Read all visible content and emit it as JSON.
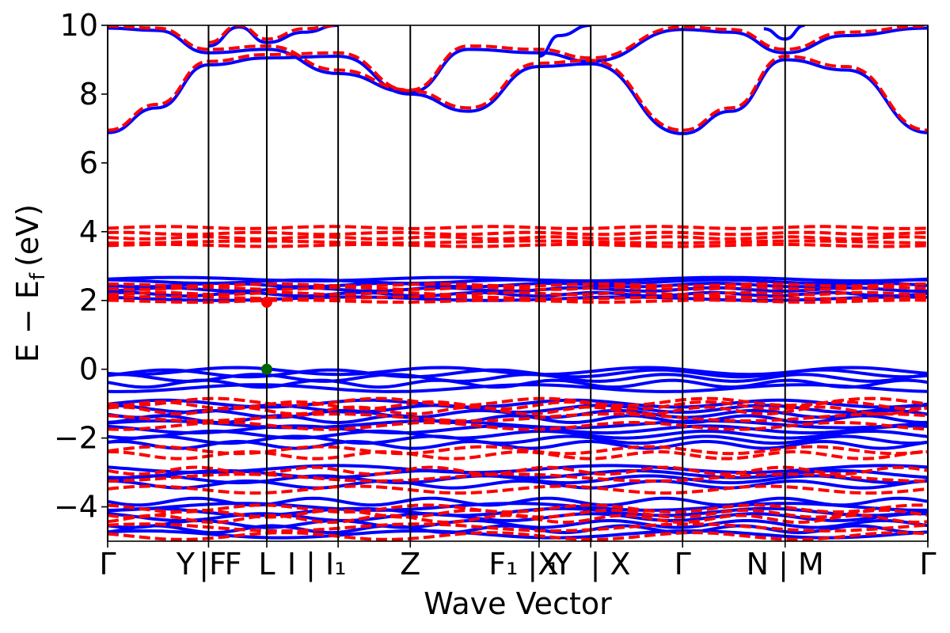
{
  "chart_data": {
    "type": "line",
    "xlabel": "Wave Vector",
    "ylabel": "E − E",
    "ylabel_sub": "f",
    "ylabel_unit": "(eV)",
    "ylim": [
      -5,
      10
    ],
    "yticks": [
      -4,
      -2,
      0,
      2,
      4,
      6,
      8,
      10
    ],
    "ytick_labels": [
      "−4",
      "−2",
      "0",
      "2",
      "4",
      "6",
      "8",
      "10"
    ],
    "grid": false,
    "legend": "none",
    "colors": {
      "series_a": "#0000ff",
      "series_b": "#ff0000",
      "vbm": "#006400",
      "cbm": "#ff0000",
      "kpath_lines": "#000000"
    },
    "kpoints": [
      {
        "x": 0.0,
        "label": "Γ"
      },
      {
        "x": 0.123,
        "label": "Y|F"
      },
      {
        "x": 0.194,
        "label": "L"
      },
      {
        "x": 0.281,
        "label": "I|I₁"
      },
      {
        "x": 0.369,
        "label": "Z"
      },
      {
        "x": 0.526,
        "label": "F₁|X₁"
      },
      {
        "x": 0.589,
        "label": "X"
      },
      {
        "x": 0.701,
        "label": "Γ"
      },
      {
        "x": 0.826,
        "label": "N|M"
      },
      {
        "x": 1.0,
        "label": "Γ"
      }
    ],
    "kpoint_text": [
      {
        "text": "Γ",
        "x": 0.0
      },
      {
        "text": "Y",
        "x": 0.095
      },
      {
        "text": "|F",
        "x": 0.128
      },
      {
        "text": "F",
        "x": 0.153
      },
      {
        "text": "L",
        "x": 0.194
      },
      {
        "text": "I | I₁",
        "x": 0.255
      },
      {
        "text": "Z",
        "x": 0.369
      },
      {
        "text": "F₁ |X",
        "x": 0.507
      },
      {
        "text": "₁",
        "x": 0.543
      },
      {
        "text": "Y",
        "x": 0.555
      },
      {
        "text": "| X",
        "x": 0.613
      },
      {
        "text": "Γ",
        "x": 0.701
      },
      {
        "text": "N | M",
        "x": 0.826
      },
      {
        "text": "Γ",
        "x": 1.0
      }
    ],
    "markers": [
      {
        "name": "vbm",
        "x": 0.194,
        "y": 0.0
      },
      {
        "name": "cbm",
        "x": 0.194,
        "y": 1.95
      }
    ],
    "series_blue_flat": [
      2.62,
      2.55,
      2.45,
      2.32,
      2.18,
      2.05,
      -0.05,
      -0.12,
      -0.25,
      -0.42,
      -0.55,
      -1.0,
      -1.15,
      -1.3,
      -1.45,
      -1.6,
      -1.75,
      -1.9,
      -2.05,
      -2.2,
      -2.9,
      -3.05,
      -3.2,
      -3.35,
      -3.85,
      -4.0,
      -4.15,
      -4.3,
      -4.5,
      -4.65,
      -4.8
    ],
    "series_red_flat": [
      4.12,
      3.95,
      3.82,
      3.7,
      3.6,
      2.45,
      2.35,
      2.2,
      2.08,
      1.98,
      -0.95,
      -1.05,
      -1.2,
      -1.4,
      -1.65,
      -2.35,
      -2.5,
      -2.95,
      -3.15,
      -3.5,
      -4.05,
      -4.2,
      -4.35,
      -4.6,
      -4.85
    ],
    "series_blue_upper": [
      {
        "x": [
          0.0,
          0.06,
          0.123,
          0.194,
          0.281,
          0.369,
          0.44,
          0.526,
          0.589,
          0.701,
          0.76,
          0.826,
          0.9,
          1.0
        ],
        "y": [
          6.88,
          7.6,
          8.85,
          9.05,
          9.1,
          8.0,
          7.5,
          8.8,
          8.88,
          6.85,
          7.5,
          9.0,
          8.7,
          6.88
        ]
      },
      {
        "x": [
          0.0,
          0.06,
          0.123,
          0.194,
          0.281,
          0.369,
          0.44,
          0.526,
          0.589,
          0.701,
          0.76,
          0.826,
          0.9,
          1.0
        ],
        "y": [
          9.92,
          9.85,
          9.2,
          9.3,
          8.6,
          8.05,
          9.3,
          9.2,
          8.95,
          9.88,
          9.8,
          9.2,
          9.7,
          9.92
        ]
      },
      {
        "x": [
          0.123,
          0.16,
          0.194,
          0.24,
          0.281
        ],
        "y": [
          9.4,
          9.95,
          9.5,
          9.8,
          10.0
        ]
      },
      {
        "x": [
          0.526,
          0.55,
          0.589
        ],
        "y": [
          9.1,
          9.7,
          10.0
        ]
      },
      {
        "x": [
          0.8,
          0.826,
          0.85
        ],
        "y": [
          9.9,
          9.6,
          10.0
        ]
      }
    ],
    "series_red_upper": [
      {
        "x": [
          0.0,
          0.06,
          0.123,
          0.194,
          0.281,
          0.369,
          0.44,
          0.526,
          0.589,
          0.701,
          0.76,
          0.826,
          0.9,
          1.0
        ],
        "y": [
          6.95,
          7.7,
          8.95,
          9.15,
          9.2,
          8.1,
          7.6,
          8.9,
          8.98,
          6.95,
          7.6,
          9.1,
          8.8,
          6.95
        ]
      },
      {
        "x": [
          0.0,
          0.06,
          0.123,
          0.194,
          0.281,
          0.369,
          0.44,
          0.526,
          0.589,
          0.701,
          0.76,
          0.826,
          0.9,
          1.0
        ],
        "y": [
          9.98,
          9.92,
          9.3,
          9.4,
          8.7,
          8.12,
          9.4,
          9.3,
          9.05,
          9.95,
          9.88,
          9.3,
          9.8,
          9.98
        ]
      },
      {
        "x": [
          0.123,
          0.16,
          0.194,
          0.24,
          0.281
        ],
        "y": [
          9.5,
          10.0,
          9.6,
          9.9,
          10.0
        ]
      }
    ]
  }
}
